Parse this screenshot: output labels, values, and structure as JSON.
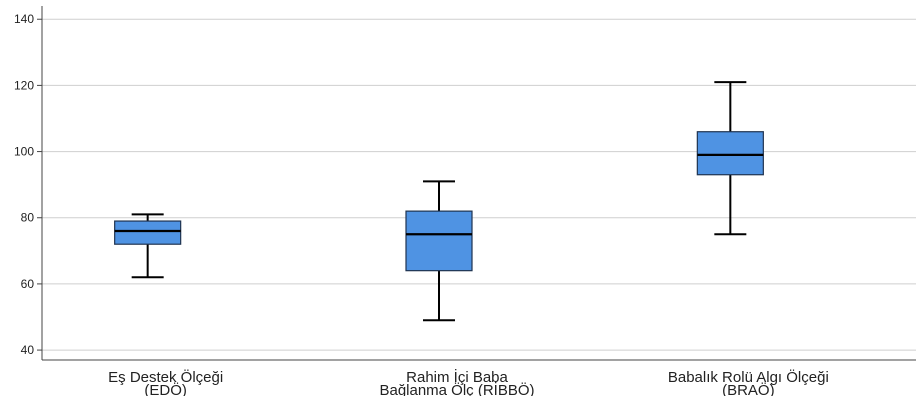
{
  "chart_data": {
    "type": "boxplot",
    "title": "",
    "xlabel": "",
    "ylabel": "",
    "ylim": [
      37,
      144
    ],
    "yticks": [
      40,
      60,
      80,
      100,
      120,
      140
    ],
    "grid": true,
    "box_color": "#4F93E3",
    "categories": [
      {
        "lines": [
          "Eş Destek Ölçeği",
          "(EDÖ)"
        ],
        "min": 62,
        "q1": 72,
        "median": 76,
        "q3": 79,
        "max": 81
      },
      {
        "lines": [
          "Rahim İçi Baba",
          "Bağlanma Ölç (RİBBÖ)"
        ],
        "min": 49,
        "q1": 64,
        "median": 75,
        "q3": 82,
        "max": 91
      },
      {
        "lines": [
          "Babalık Rolü Algı Ölçeği",
          "(BRAÖ)"
        ],
        "min": 75,
        "q1": 93,
        "median": 99,
        "q3": 106,
        "max": 121
      }
    ]
  }
}
